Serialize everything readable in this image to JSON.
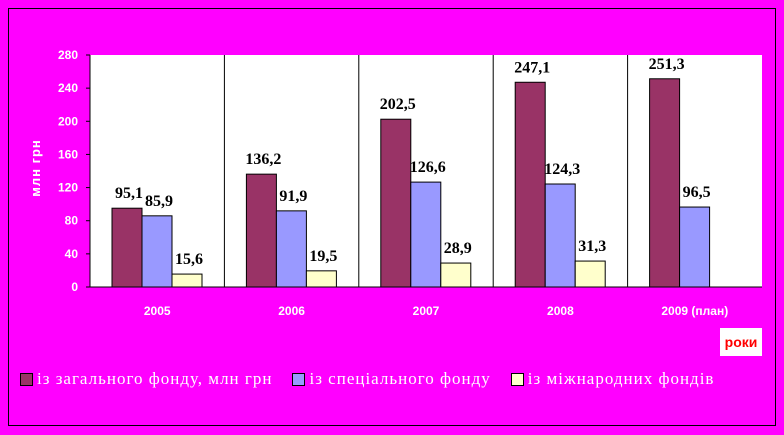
{
  "chart_data": {
    "type": "bar",
    "categories": [
      "2005",
      "2006",
      "2007",
      "2008",
      "2009 (план)"
    ],
    "series": [
      {
        "name": "із загального фонду, млн грн",
        "values": [
          95.1,
          136.2,
          202.5,
          247.1,
          251.3
        ],
        "labels": [
          "95,1",
          "136,2",
          "202,5",
          "247,1",
          "251,3"
        ],
        "color": "#993366"
      },
      {
        "name": "із спеціального фонду",
        "values": [
          85.9,
          91.9,
          126.6,
          124.3,
          96.5
        ],
        "labels": [
          "85,9",
          "91,9",
          "126,6",
          "124,3",
          "96,5"
        ],
        "color": "#9999ff"
      },
      {
        "name": "із міжнародних фондів",
        "values": [
          15.6,
          19.5,
          28.9,
          31.3,
          null
        ],
        "labels": [
          "15,6",
          "19,5",
          "28,9",
          "31,3",
          ""
        ],
        "color": "#ffffcc"
      }
    ],
    "ylabel": "млн грн",
    "xlabel": "роки",
    "yticks": [
      "0",
      "40",
      "80",
      "120",
      "160",
      "200",
      "240",
      "280"
    ],
    "ylim": [
      0,
      280
    ],
    "legend_position": "bottom",
    "grid": false
  }
}
